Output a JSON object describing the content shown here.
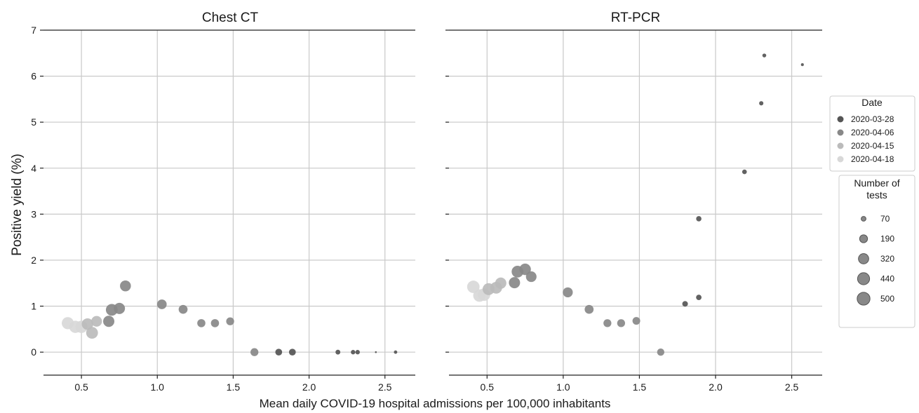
{
  "figure": {
    "xlabel": "Mean daily COVID-19 hospital admissions per 100,000 inhabitants",
    "ylabel": "Positive yield (%)"
  },
  "chart_data": [
    {
      "type": "scatter",
      "title": "Chest CT",
      "xlim": [
        0.25,
        2.7
      ],
      "ylim": [
        -0.5,
        7
      ],
      "xticks": [
        0.5,
        1.0,
        1.5,
        2.0,
        2.5
      ],
      "xtick_labels": [
        "0.5",
        "1.0",
        "1.5",
        "2.0",
        "2.5"
      ],
      "yticks": [
        0,
        1,
        2,
        3,
        4,
        5,
        6,
        7
      ],
      "ytick_labels": [
        "0",
        "1",
        "2",
        "3",
        "4",
        "5",
        "6",
        "7"
      ],
      "grid": true,
      "points": [
        {
          "x": 2.57,
          "y": 0.0,
          "n": 35,
          "date_index": 0
        },
        {
          "x": 2.44,
          "y": 0.0,
          "n": 10,
          "date_index": 0
        },
        {
          "x": 2.32,
          "y": 0.0,
          "n": 60,
          "date_index": 0
        },
        {
          "x": 2.29,
          "y": 0.0,
          "n": 60,
          "date_index": 0
        },
        {
          "x": 2.19,
          "y": 0.0,
          "n": 70,
          "date_index": 0
        },
        {
          "x": 1.89,
          "y": 0.0,
          "n": 140,
          "date_index": 0
        },
        {
          "x": 1.8,
          "y": 0.0,
          "n": 140,
          "date_index": 0
        },
        {
          "x": 1.64,
          "y": 0.0,
          "n": 190,
          "date_index": 1
        },
        {
          "x": 1.48,
          "y": 0.67,
          "n": 190,
          "date_index": 1
        },
        {
          "x": 1.38,
          "y": 0.63,
          "n": 200,
          "date_index": 1
        },
        {
          "x": 1.29,
          "y": 0.63,
          "n": 200,
          "date_index": 1
        },
        {
          "x": 1.17,
          "y": 0.93,
          "n": 240,
          "date_index": 1
        },
        {
          "x": 1.03,
          "y": 1.04,
          "n": 280,
          "date_index": 1
        },
        {
          "x": 0.79,
          "y": 1.44,
          "n": 360,
          "date_index": 1
        },
        {
          "x": 0.75,
          "y": 0.95,
          "n": 380,
          "date_index": 1
        },
        {
          "x": 0.7,
          "y": 0.92,
          "n": 420,
          "date_index": 1
        },
        {
          "x": 0.68,
          "y": 0.67,
          "n": 380,
          "date_index": 1
        },
        {
          "x": 0.6,
          "y": 0.67,
          "n": 350,
          "date_index": 2
        },
        {
          "x": 0.57,
          "y": 0.42,
          "n": 420,
          "date_index": 2
        },
        {
          "x": 0.54,
          "y": 0.61,
          "n": 400,
          "date_index": 2
        },
        {
          "x": 0.5,
          "y": 0.55,
          "n": 460,
          "date_index": 3
        },
        {
          "x": 0.46,
          "y": 0.55,
          "n": 450,
          "date_index": 3
        },
        {
          "x": 0.41,
          "y": 0.63,
          "n": 440,
          "date_index": 3
        }
      ]
    },
    {
      "type": "scatter",
      "title": "RT-PCR",
      "xlim": [
        0.25,
        2.7
      ],
      "ylim": [
        -0.5,
        7
      ],
      "xticks": [
        0.5,
        1.0,
        1.5,
        2.0,
        2.5
      ],
      "xtick_labels": [
        "0.5",
        "1.0",
        "1.5",
        "2.0",
        "2.5"
      ],
      "yticks": [
        0,
        1,
        2,
        3,
        4,
        5,
        6,
        7
      ],
      "grid": true,
      "points": [
        {
          "x": 2.57,
          "y": 6.25,
          "n": 25,
          "date_index": 0
        },
        {
          "x": 2.32,
          "y": 6.45,
          "n": 45,
          "date_index": 0
        },
        {
          "x": 2.3,
          "y": 5.41,
          "n": 55,
          "date_index": 0
        },
        {
          "x": 2.19,
          "y": 3.92,
          "n": 65,
          "date_index": 0
        },
        {
          "x": 1.89,
          "y": 2.9,
          "n": 85,
          "date_index": 0
        },
        {
          "x": 1.89,
          "y": 1.19,
          "n": 90,
          "date_index": 0
        },
        {
          "x": 1.8,
          "y": 1.05,
          "n": 95,
          "date_index": 0
        },
        {
          "x": 1.64,
          "y": 0.0,
          "n": 160,
          "date_index": 1
        },
        {
          "x": 1.48,
          "y": 0.68,
          "n": 180,
          "date_index": 1
        },
        {
          "x": 1.38,
          "y": 0.63,
          "n": 190,
          "date_index": 1
        },
        {
          "x": 1.29,
          "y": 0.63,
          "n": 190,
          "date_index": 1
        },
        {
          "x": 1.17,
          "y": 0.93,
          "n": 240,
          "date_index": 1
        },
        {
          "x": 1.03,
          "y": 1.3,
          "n": 300,
          "date_index": 1
        },
        {
          "x": 0.79,
          "y": 1.64,
          "n": 340,
          "date_index": 1
        },
        {
          "x": 0.75,
          "y": 1.8,
          "n": 400,
          "date_index": 1
        },
        {
          "x": 0.7,
          "y": 1.75,
          "n": 420,
          "date_index": 1
        },
        {
          "x": 0.68,
          "y": 1.51,
          "n": 380,
          "date_index": 1
        },
        {
          "x": 0.59,
          "y": 1.5,
          "n": 380,
          "date_index": 2
        },
        {
          "x": 0.56,
          "y": 1.4,
          "n": 420,
          "date_index": 2
        },
        {
          "x": 0.51,
          "y": 1.37,
          "n": 430,
          "date_index": 2
        },
        {
          "x": 0.48,
          "y": 1.25,
          "n": 480,
          "date_index": 3
        },
        {
          "x": 0.45,
          "y": 1.23,
          "n": 470,
          "date_index": 3
        },
        {
          "x": 0.41,
          "y": 1.42,
          "n": 470,
          "date_index": 3
        }
      ]
    }
  ],
  "date_legend": {
    "title": "Date",
    "placement": "right",
    "entries": [
      {
        "label": "2020-03-28",
        "color": "#555555"
      },
      {
        "label": "2020-04-06",
        "color": "#888888"
      },
      {
        "label": "2020-04-15",
        "color": "#bbbbbb"
      },
      {
        "label": "2020-04-18",
        "color": "#d8d8d8"
      }
    ]
  },
  "size_legend": {
    "title_line1": "Number of",
    "title_line2": "tests",
    "placement": "right",
    "marker_color": "#888888",
    "entries": [
      {
        "label": "70",
        "n": 70
      },
      {
        "label": "190",
        "n": 190
      },
      {
        "label": "320",
        "n": 320
      },
      {
        "label": "440",
        "n": 440
      },
      {
        "label": "500",
        "n": 500
      }
    ]
  }
}
